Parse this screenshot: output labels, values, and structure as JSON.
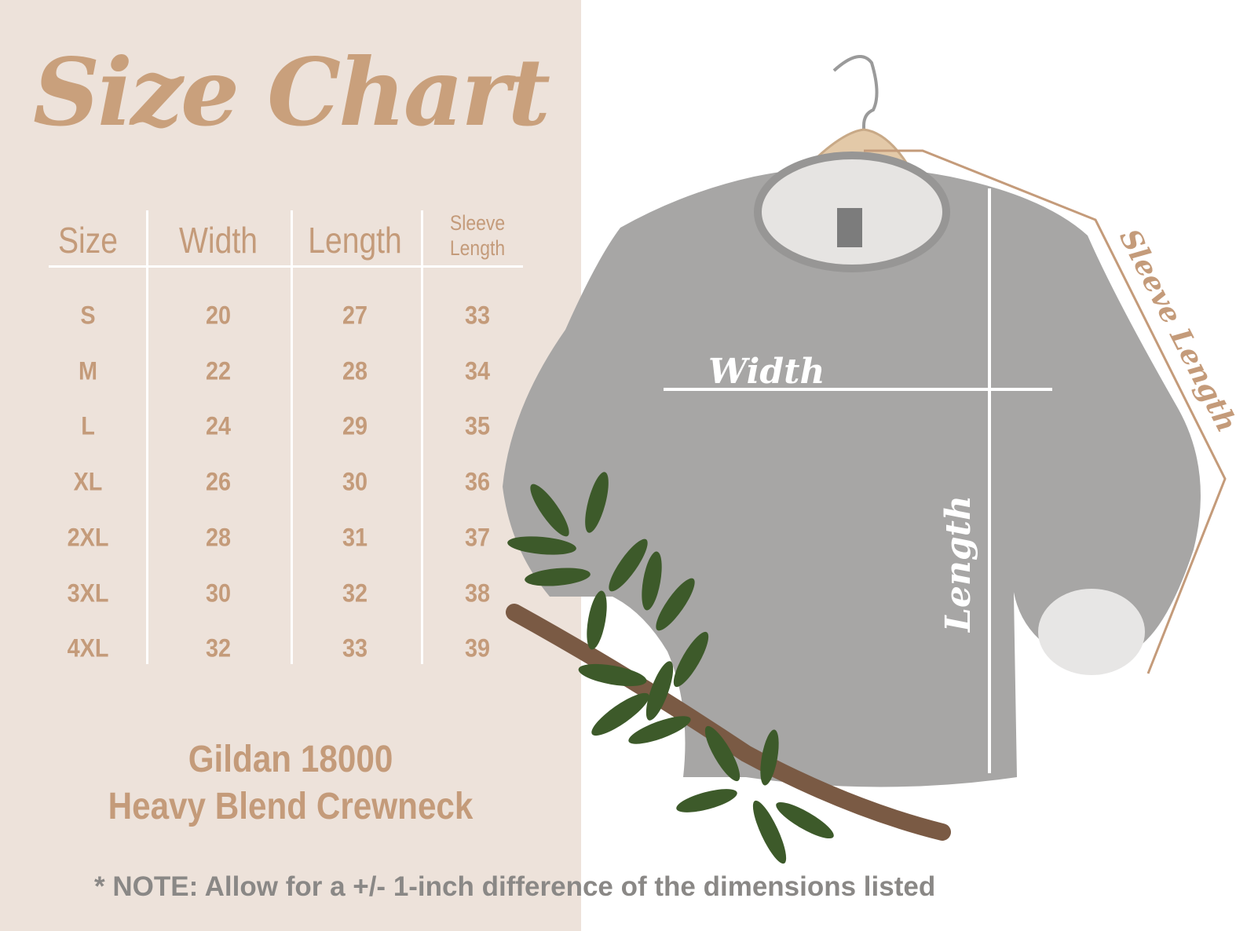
{
  "title": "Size Chart",
  "table": {
    "header": [
      "Size",
      "Width",
      "Length",
      "Sleeve Length"
    ],
    "rows": [
      [
        "S",
        20,
        27,
        33
      ],
      [
        "M",
        22,
        28,
        34
      ],
      [
        "L",
        24,
        29,
        35
      ],
      [
        "XL",
        26,
        30,
        36
      ],
      [
        "2XL",
        28,
        31,
        37
      ],
      [
        "3XL",
        30,
        32,
        38
      ],
      [
        "4XL",
        32,
        33,
        39
      ]
    ]
  },
  "product": {
    "model": "Gildan 18000",
    "name": "Heavy Blend Crewneck"
  },
  "diagram": {
    "width_label": "Width",
    "length_label": "Length",
    "sleeve_label": "Sleeve Length"
  },
  "note": "* NOTE: Allow for a +/- 1-inch difference of the dimensions listed"
}
